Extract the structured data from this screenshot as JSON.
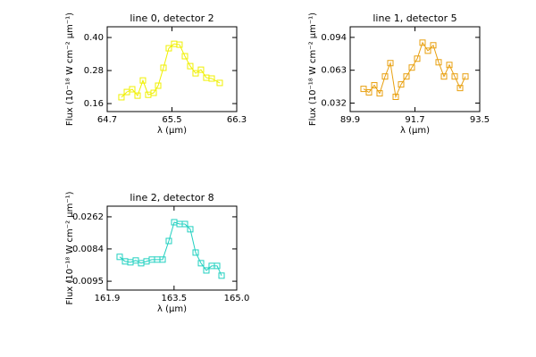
{
  "chart_data": [
    {
      "type": "line",
      "marker": "square",
      "title": "line 0, detector 2",
      "xlabel": "λ (μm)",
      "ylabel": "Flux (10⁻¹⁸ W cm⁻² μm⁻¹)",
      "color": "#f0f000",
      "x": [
        64.876,
        64.943,
        65.009,
        65.075,
        65.141,
        65.207,
        65.274,
        65.329,
        65.395,
        65.461,
        65.527,
        65.593,
        65.66,
        65.726,
        65.792,
        65.858,
        65.924,
        65.991,
        66.09
      ],
      "values": [
        0.183,
        0.202,
        0.212,
        0.189,
        0.244,
        0.192,
        0.199,
        0.225,
        0.29,
        0.361,
        0.377,
        0.374,
        0.332,
        0.296,
        0.27,
        0.283,
        0.254,
        0.251,
        0.235
      ],
      "xlim": [
        64.7,
        66.3
      ],
      "xticks": [
        64.7,
        65.5,
        66.3
      ],
      "ylim": [
        0.131,
        0.439
      ],
      "yticks": [
        {
          "value": 0.4,
          "label": "0.40"
        },
        0.28,
        0.16
      ]
    },
    {
      "type": "line",
      "marker": "square",
      "title": "line 1, detector 5",
      "xlabel": "λ (μm)",
      "ylabel": "Flux (10⁻¹⁸ W cm⁻² μm⁻¹)",
      "color": "#e8a010",
      "x": [
        90.272,
        90.421,
        90.57,
        90.719,
        90.868,
        91.017,
        91.166,
        91.315,
        91.464,
        91.613,
        91.762,
        91.911,
        92.06,
        92.209,
        92.358,
        92.507,
        92.656,
        92.805,
        92.954,
        93.103
      ],
      "values": [
        0.0454,
        0.0421,
        0.0488,
        0.0412,
        0.0571,
        0.0697,
        0.0379,
        0.0496,
        0.0571,
        0.0655,
        0.0739,
        0.089,
        0.0814,
        0.0865,
        0.0705,
        0.0571,
        0.068,
        0.0571,
        0.0462,
        0.0571
      ],
      "xlim": [
        89.9,
        93.5
      ],
      "xticks": [
        89.9,
        91.7,
        93.5
      ],
      "ylim": [
        0.024,
        0.104
      ],
      "yticks": [
        0.094,
        0.063,
        0.032
      ]
    },
    {
      "type": "line",
      "marker": "square",
      "title": "line 2, detector 8",
      "xlabel": "λ (μm)",
      "ylabel": "Flux (10⁻¹⁸ W cm⁻² μm⁻¹)",
      "color": "#20d0c0",
      "x": [
        162.199,
        162.328,
        162.456,
        162.584,
        162.712,
        162.841,
        162.969,
        163.097,
        163.226,
        163.375,
        163.504,
        163.632,
        163.76,
        163.888,
        164.017,
        164.145,
        164.273,
        164.401,
        164.53,
        164.637
      ],
      "values": [
        0.004,
        0.0015,
        0.001,
        0.002,
        0.0005,
        0.0015,
        0.0025,
        0.0025,
        0.0025,
        0.0128,
        0.0232,
        0.0222,
        0.0222,
        0.0193,
        0.0064,
        0.0005,
        -0.0035,
        -0.001,
        -0.001,
        -0.0064
      ],
      "xlim": [
        161.9,
        165.0
      ],
      "xticks": [
        161.9,
        163.5,
        {
          "value": 165.0,
          "label": "165.0"
        }
      ],
      "ylim": [
        -0.0144,
        0.0321
      ],
      "yticks": [
        0.0262,
        0.0084,
        {
          "value": -0.0095,
          "label": "−0.0095"
        }
      ]
    }
  ]
}
